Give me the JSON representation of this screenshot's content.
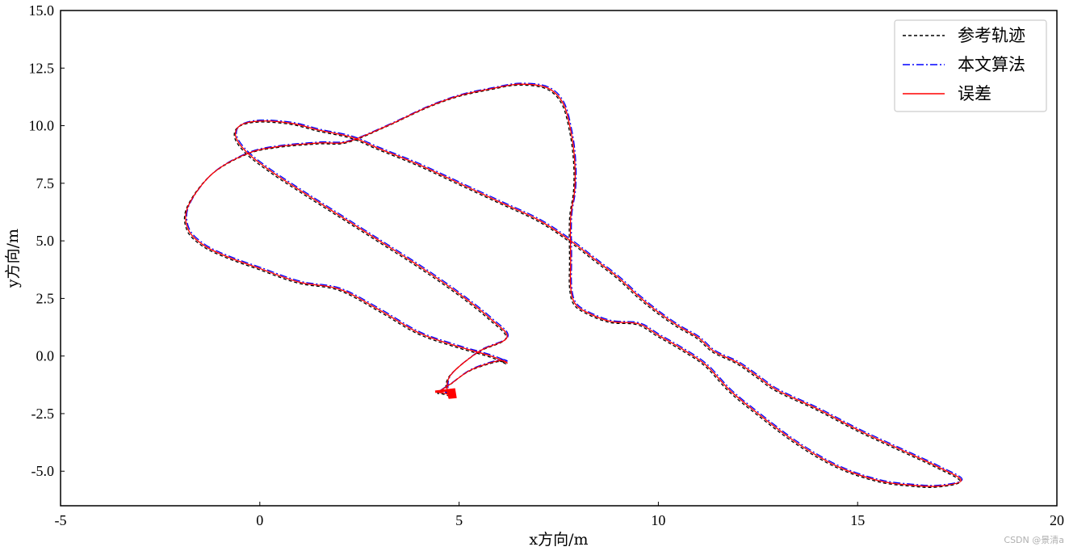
{
  "watermark": "CSDN @景清a",
  "chart_data": {
    "type": "line",
    "title": "",
    "xlabel": "x方向/m",
    "ylabel": "y方向/m",
    "xlim": [
      -5,
      20
    ],
    "ylim": [
      -6.5,
      15
    ],
    "x_ticks": [
      -5,
      0,
      5,
      10,
      15,
      20
    ],
    "x_tick_labels": [
      "-5",
      "0",
      "5",
      "10",
      "15",
      "20"
    ],
    "y_ticks": [
      -5,
      -2.5,
      0,
      2.5,
      5,
      7.5,
      10,
      12.5,
      15
    ],
    "y_tick_labels": [
      "-5.0",
      "-2.5",
      "0.0",
      "2.5",
      "5.0",
      "7.5",
      "10.0",
      "12.5",
      "15.0"
    ],
    "grid": false,
    "legend_position": "top-right",
    "series": [
      {
        "name": "参考轨迹",
        "color": "#000000",
        "style": "dashed"
      },
      {
        "name": "本文算法",
        "color": "#0000ff",
        "style": "dashdot"
      },
      {
        "name": "误差",
        "color": "#ff0000",
        "style": "solid"
      }
    ],
    "trajectory": {
      "x": [
        4.8,
        4.6,
        4.5,
        4.8,
        5.3,
        6.0,
        6.2,
        5.8,
        5.0,
        4.0,
        3.0,
        2.0,
        1.0,
        0.0,
        -0.8,
        -1.4,
        -1.8,
        -1.8,
        -1.2,
        -0.3,
        0.5,
        1.5,
        2.2,
        3.2,
        4.2,
        5.0,
        5.8,
        6.5,
        7.2,
        7.6,
        7.8,
        7.9,
        7.9,
        7.8,
        7.8,
        7.8,
        7.9,
        8.2,
        8.8,
        9.5,
        10.0,
        10.6,
        11.2,
        11.8,
        12.5,
        13.5,
        14.5,
        15.5,
        16.3,
        17.0,
        17.6,
        17.0,
        16.0,
        15.0,
        14.0,
        13.0,
        12.5,
        12.0,
        11.4,
        11.0,
        10.5,
        10.0,
        9.5,
        9.0,
        8.4,
        7.8,
        7.0,
        6.0,
        5.0,
        4.0,
        3.0,
        2.3,
        1.5,
        0.8,
        0.0,
        -0.5,
        -0.6,
        -0.3,
        0.3,
        1.0,
        2.0,
        3.0,
        4.0,
        5.0,
        5.8,
        6.2,
        5.5,
        4.8,
        4.7,
        4.8
      ],
      "y": [
        -1.7,
        -1.6,
        -1.55,
        -1.2,
        -0.6,
        -0.2,
        -0.3,
        0.0,
        0.4,
        1.0,
        2.0,
        2.9,
        3.2,
        3.8,
        4.3,
        4.8,
        5.5,
        6.5,
        7.9,
        8.8,
        9.1,
        9.25,
        9.3,
        10.0,
        10.8,
        11.3,
        11.6,
        11.8,
        11.65,
        11.0,
        9.8,
        8.5,
        7.2,
        6.0,
        4.2,
        3.0,
        2.3,
        1.9,
        1.5,
        1.4,
        0.9,
        0.3,
        -0.4,
        -1.5,
        -2.5,
        -3.8,
        -4.8,
        -5.4,
        -5.6,
        -5.65,
        -5.4,
        -4.8,
        -4.0,
        -3.2,
        -2.3,
        -1.5,
        -0.9,
        -0.3,
        0.2,
        0.8,
        1.3,
        1.9,
        2.6,
        3.4,
        4.2,
        5.0,
        5.9,
        6.7,
        7.5,
        8.3,
        9.0,
        9.5,
        9.8,
        10.1,
        10.2,
        10.0,
        9.5,
        8.8,
        8.0,
        7.2,
        6.1,
        5.0,
        3.9,
        2.7,
        1.6,
        0.8,
        0.2,
        -0.8,
        -1.5,
        -1.7
      ]
    }
  }
}
